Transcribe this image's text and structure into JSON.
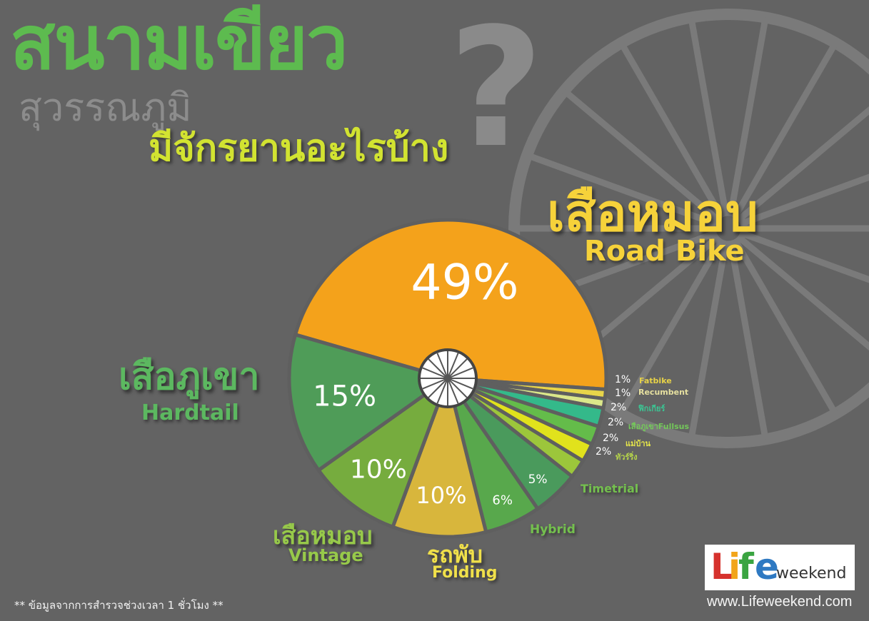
{
  "header": {
    "title_main": "สนามเขียว",
    "title_qmark": "?",
    "title_sub": "สุวรรณภูมิ",
    "title_question": "มีจักรยานอะไรบ้าง"
  },
  "chart_data": {
    "type": "pie",
    "slices": [
      {
        "th": "เสือหมอบ",
        "en": "Road Bike",
        "value": 49,
        "label": "49%",
        "color": "#f4a21b"
      },
      {
        "th": "",
        "en": "Fatbike",
        "value": 1,
        "label": "1%",
        "color": "#e8d54a"
      },
      {
        "th": "",
        "en": "Recumbent",
        "value": 1,
        "label": "1%",
        "color": "#dbe78a"
      },
      {
        "th": "ฟิกเกียร์",
        "en": "",
        "value": 2,
        "label": "2%",
        "color": "#34b98a"
      },
      {
        "th": "เสือภูเขาFullsus",
        "en": "",
        "value": 2,
        "label": "2%",
        "color": "#64bc4a"
      },
      {
        "th": "แม่บ้าน",
        "en": "",
        "value": 2,
        "label": "2%",
        "color": "#e1e21c"
      },
      {
        "th": "ทัวร์ริ่ง",
        "en": "",
        "value": 2,
        "label": "2%",
        "color": "#9cc63b"
      },
      {
        "th": "",
        "en": "Timetrial",
        "value": 5,
        "label": "5%",
        "color": "#4a9a5c"
      },
      {
        "th": "",
        "en": "Hybrid",
        "value": 6,
        "label": "6%",
        "color": "#58a84c"
      },
      {
        "th": "รถพับ",
        "en": "Folding",
        "value": 10,
        "label": "10%",
        "color": "#d8b63c"
      },
      {
        "th": "เสือหมอบ",
        "en": "Vintage",
        "value": 10,
        "label": "10%",
        "color": "#76ac3e"
      },
      {
        "th": "เสือภูเขา",
        "en": "Hardtail",
        "value": 15,
        "label": "15%",
        "color": "#4f9c58"
      }
    ]
  },
  "labels": {
    "road_th": "เสือหมอบ",
    "road_en": "Road Bike",
    "hardtail_th": "เสือภูเขา",
    "hardtail_en": "Hardtail",
    "vintage_th": "เสือหมอบ",
    "vintage_en": "Vintage",
    "folding_th": "รถพับ",
    "folding_en": "Folding",
    "hybrid_en": "Hybrid",
    "timetrial_en": "Timetrial",
    "small": [
      {
        "pct": "1%",
        "name": "Fatbike",
        "color": "#e7d248"
      },
      {
        "pct": "1%",
        "name": "Recumbent",
        "color": "#e6e0a0"
      },
      {
        "pct": "2%",
        "name": "ฟิกเกียร์",
        "color": "#3cc493"
      },
      {
        "pct": "2%",
        "name": "เสือภูเขาFullsus",
        "color": "#74c85a"
      },
      {
        "pct": "2%",
        "name": "แม่บ้าน",
        "color": "#e6e64a"
      },
      {
        "pct": "2%",
        "name": "ทัวร์ริ่ง",
        "color": "#b5d44a"
      }
    ]
  },
  "footer": {
    "note": "** ข้อมูลจากการสำรวจช่วงเวลา 1 ชั่วโมง **",
    "logo_l": "L",
    "logo_i": "i",
    "logo_f": "f",
    "logo_e": "e",
    "logo_weekend": "weekend",
    "website": "www.Lifeweekend.com"
  },
  "colors": {
    "background": "#636363",
    "title_green": "#5dbb4f",
    "question_yellow": "#d2e331",
    "road_label": "#f6d23a",
    "hardtail_label": "#5cb860",
    "vintage_label": "#97c94a",
    "folding_label": "#f0e04a",
    "small_label_green": "#74c04e"
  },
  "icons": [
    "background-wheel-icon",
    "center-wheel-icon"
  ]
}
